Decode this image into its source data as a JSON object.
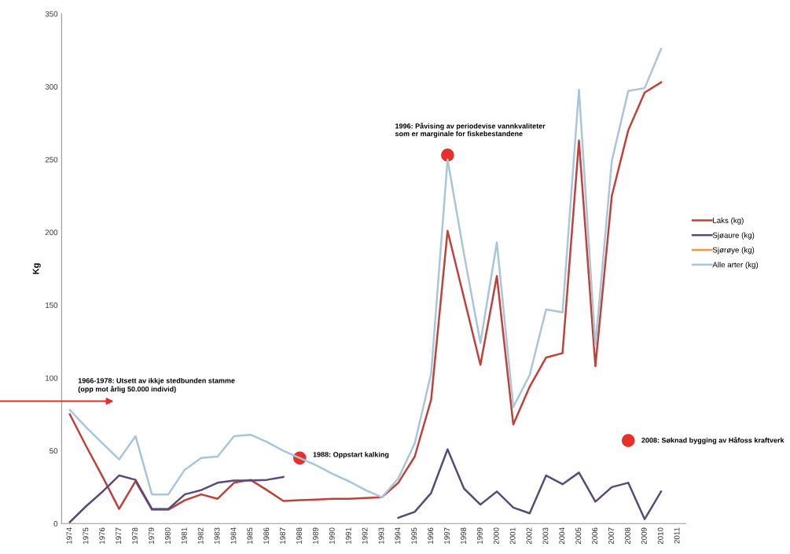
{
  "chart_data": {
    "type": "line",
    "ylabel": "Kg",
    "categories": [
      "1974",
      "1975",
      "1976",
      "1977",
      "1978",
      "1979",
      "1980",
      "1981",
      "1982",
      "1983",
      "1984",
      "1985",
      "1986",
      "1987",
      "1988",
      "1989",
      "1990",
      "1991",
      "1992",
      "1993",
      "1994",
      "1995",
      "1996",
      "1997",
      "1998",
      "1999",
      "2000",
      "2001",
      "2002",
      "2003",
      "2004",
      "2005",
      "2006",
      "2007",
      "2008",
      "2009",
      "2010",
      "2011"
    ],
    "series": [
      {
        "name": "Laks (kg)",
        "color": "#c0403a",
        "values": [
          75,
          53,
          32,
          10,
          29,
          9.5,
          9.5,
          16,
          20,
          17,
          28,
          30,
          23,
          15.5,
          16,
          16.5,
          17,
          17,
          17.5,
          18,
          28,
          46,
          85,
          201,
          155,
          109,
          170,
          68,
          94,
          114,
          117,
          263,
          108,
          225,
          270,
          296,
          303,
          null
        ]
      },
      {
        "name": "Sjøaure (kg)",
        "color": "#5a4a78",
        "values": [
          1,
          12,
          22,
          33,
          30,
          10,
          10,
          20,
          23,
          28,
          29.5,
          29.5,
          30,
          32,
          null,
          null,
          null,
          null,
          null,
          null,
          4,
          8,
          21,
          51,
          24,
          13,
          22,
          11,
          7,
          33,
          27,
          35,
          15,
          25,
          28,
          3,
          22,
          null
        ]
      },
      {
        "name": "Sjørøye (kg)",
        "color": "#f79646",
        "values": [
          null,
          null,
          null,
          null,
          null,
          null,
          null,
          null,
          null,
          null,
          null,
          null,
          null,
          null,
          null,
          null,
          null,
          null,
          null,
          null,
          null,
          null,
          null,
          null,
          null,
          null,
          null,
          null,
          null,
          null,
          null,
          null,
          null,
          null,
          null,
          null,
          null,
          null
        ]
      },
      {
        "name": "Alle arter (kg)",
        "color": "#a9c5d8",
        "values": [
          78,
          66,
          55,
          44,
          60,
          20,
          20,
          37,
          45,
          46,
          60,
          61,
          56,
          50,
          45,
          40,
          34,
          29,
          23,
          18,
          31,
          55,
          103,
          250,
          185,
          124,
          193,
          80,
          102,
          147,
          145,
          298,
          122,
          249,
          297,
          299,
          326,
          null
        ]
      }
    ],
    "ylim": [
      0,
      350
    ],
    "yticks": [
      0,
      50,
      100,
      150,
      200,
      250,
      300,
      350
    ],
    "grid": false,
    "legend": "right",
    "marker": "none",
    "line_style": "solid",
    "annotations": [
      "1966-1978: Utsett av ikkje stedbunden stamme\n(opp mot årlig 50.000 individ)",
      {
        "text": "1988: Oppstart kalking",
        "x": "1988",
        "y": 45
      },
      {
        "text": "1996: Påvising av periodevise vannkvaliteter\nsom er marginale for fiskebestandene",
        "x": "1997",
        "y": 253
      },
      {
        "text": "2008: Søknad bygging av Håfoss kraftverk",
        "x": "2008",
        "y": 57
      }
    ]
  }
}
